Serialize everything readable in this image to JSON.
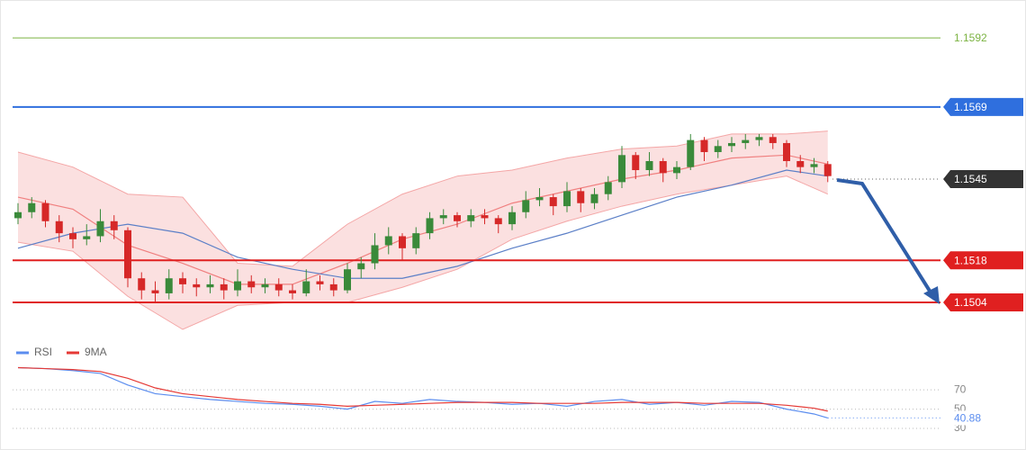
{
  "chart_data": [
    {
      "type": "candlestick",
      "ylim": [
        1.14938,
        1.16046
      ],
      "bull_color": "#3a8a3a",
      "bear_color": "#d62828",
      "candles": [
        [
          1.1532,
          1.1537,
          1.153,
          1.1534
        ],
        [
          1.1534,
          1.1539,
          1.1532,
          1.1537
        ],
        [
          1.1537,
          1.1538,
          1.1529,
          1.1531
        ],
        [
          1.1531,
          1.1533,
          1.1524,
          1.1527
        ],
        [
          1.1527,
          1.1529,
          1.1522,
          1.1525
        ],
        [
          1.1525,
          1.153,
          1.1523,
          1.1526
        ],
        [
          1.1526,
          1.1535,
          1.1524,
          1.1531
        ],
        [
          1.1531,
          1.1533,
          1.1525,
          1.1528
        ],
        [
          1.1528,
          1.1529,
          1.1509,
          1.1512
        ],
        [
          1.1512,
          1.1514,
          1.1505,
          1.1508
        ],
        [
          1.1508,
          1.1511,
          1.1504,
          1.1507
        ],
        [
          1.1507,
          1.1515,
          1.1505,
          1.1512
        ],
        [
          1.1512,
          1.1514,
          1.1507,
          1.151
        ],
        [
          1.151,
          1.1512,
          1.1506,
          1.1509
        ],
        [
          1.1509,
          1.1513,
          1.1507,
          1.151
        ],
        [
          1.151,
          1.1512,
          1.1505,
          1.1508
        ],
        [
          1.1508,
          1.1515,
          1.1506,
          1.1511
        ],
        [
          1.1511,
          1.1513,
          1.1507,
          1.1509
        ],
        [
          1.1509,
          1.1512,
          1.1507,
          1.151
        ],
        [
          1.151,
          1.1512,
          1.1506,
          1.1508
        ],
        [
          1.1508,
          1.151,
          1.1505,
          1.1507
        ],
        [
          1.1507,
          1.1515,
          1.1506,
          1.1511
        ],
        [
          1.1511,
          1.1513,
          1.1508,
          1.151
        ],
        [
          1.151,
          1.1512,
          1.1506,
          1.1508
        ],
        [
          1.1508,
          1.1517,
          1.1507,
          1.1515
        ],
        [
          1.1515,
          1.1519,
          1.1512,
          1.1517
        ],
        [
          1.1517,
          1.1527,
          1.1515,
          1.1523
        ],
        [
          1.1523,
          1.1529,
          1.152,
          1.1526
        ],
        [
          1.1526,
          1.1527,
          1.1518,
          1.1522
        ],
        [
          1.1522,
          1.1529,
          1.152,
          1.1527
        ],
        [
          1.1527,
          1.1534,
          1.1525,
          1.1532
        ],
        [
          1.1532,
          1.1535,
          1.153,
          1.1533
        ],
        [
          1.1533,
          1.1534,
          1.1529,
          1.1531
        ],
        [
          1.1531,
          1.1535,
          1.1529,
          1.1533
        ],
        [
          1.1533,
          1.1535,
          1.153,
          1.1532
        ],
        [
          1.1532,
          1.1533,
          1.1527,
          1.153
        ],
        [
          1.153,
          1.1536,
          1.1528,
          1.1534
        ],
        [
          1.1534,
          1.1541,
          1.1532,
          1.1538
        ],
        [
          1.1538,
          1.1542,
          1.1536,
          1.1539
        ],
        [
          1.1539,
          1.154,
          1.1533,
          1.1536
        ],
        [
          1.1536,
          1.1544,
          1.1534,
          1.1541
        ],
        [
          1.1541,
          1.1542,
          1.1534,
          1.1537
        ],
        [
          1.1537,
          1.1542,
          1.1535,
          1.154
        ],
        [
          1.154,
          1.1546,
          1.1538,
          1.1544
        ],
        [
          1.1544,
          1.1556,
          1.1542,
          1.1553
        ],
        [
          1.1553,
          1.1554,
          1.1545,
          1.1548
        ],
        [
          1.1548,
          1.1554,
          1.1546,
          1.1551
        ],
        [
          1.1551,
          1.1552,
          1.1544,
          1.1547
        ],
        [
          1.1547,
          1.1551,
          1.1545,
          1.1549
        ],
        [
          1.1549,
          1.156,
          1.1548,
          1.1558
        ],
        [
          1.1558,
          1.1559,
          1.1551,
          1.1554
        ],
        [
          1.1554,
          1.1558,
          1.1552,
          1.1556
        ],
        [
          1.1556,
          1.1559,
          1.1554,
          1.1557
        ],
        [
          1.1557,
          1.156,
          1.1555,
          1.1558
        ],
        [
          1.1558,
          1.156,
          1.1556,
          1.1559
        ],
        [
          1.1559,
          1.156,
          1.1555,
          1.1557
        ],
        [
          1.1557,
          1.1558,
          1.1549,
          1.1551
        ],
        [
          1.1551,
          1.1553,
          1.1547,
          1.1549
        ],
        [
          1.1549,
          1.1552,
          1.1547,
          1.155
        ],
        [
          1.155,
          1.1551,
          1.1544,
          1.1546
        ]
      ],
      "overlay_x": [
        0,
        4,
        8,
        12,
        16,
        20,
        24,
        28,
        32,
        36,
        40,
        44,
        48,
        52,
        56,
        59
      ],
      "band": {
        "color": "#f4a6a6",
        "upper": [
          1.1554,
          1.1549,
          1.154,
          1.1539,
          1.1517,
          1.1516,
          1.153,
          1.154,
          1.1546,
          1.1548,
          1.1552,
          1.1555,
          1.1556,
          1.156,
          1.156,
          1.1561
        ],
        "lower": [
          1.1524,
          1.1521,
          1.1506,
          1.1495,
          1.1503,
          1.1504,
          1.1504,
          1.1509,
          1.1515,
          1.1525,
          1.1531,
          1.1536,
          1.154,
          1.1543,
          1.1546,
          1.154
        ]
      },
      "lines": [
        {
          "color": "#f08080",
          "values": [
            1.1539,
            1.1535,
            1.1523,
            1.1517,
            1.151,
            1.151,
            1.1517,
            1.1525,
            1.153,
            1.1537,
            1.1541,
            1.1545,
            1.1548,
            1.1552,
            1.1553,
            1.155
          ]
        },
        {
          "color": "#5b7fc7",
          "values": [
            1.1522,
            1.1527,
            1.153,
            1.1527,
            1.1519,
            1.1515,
            1.1512,
            1.1512,
            1.1516,
            1.1522,
            1.1527,
            1.1533,
            1.1539,
            1.1543,
            1.1548,
            1.1546
          ]
        }
      ],
      "levels": [
        {
          "value": 1.1592,
          "color": "#7cb342",
          "style": "solid",
          "box": false
        },
        {
          "value": 1.1569,
          "color": "#2f6fde",
          "style": "solid",
          "box": true
        },
        {
          "value": 1.1545,
          "color": "#333333",
          "style": "dotted",
          "box": true
        },
        {
          "value": 1.1518,
          "color": "#e02020",
          "style": "solid",
          "box": true
        },
        {
          "value": 1.1504,
          "color": "#e02020",
          "style": "solid",
          "box": true
        }
      ]
    },
    {
      "type": "line",
      "ylim": [
        17,
        100
      ],
      "yticks": [
        70,
        50,
        30
      ],
      "grid": true,
      "x": [
        0,
        2,
        4,
        6,
        8,
        10,
        12,
        14,
        16,
        18,
        20,
        22,
        24,
        26,
        28,
        30,
        32,
        34,
        36,
        38,
        40,
        42,
        44,
        46,
        48,
        50,
        52,
        54,
        56,
        58,
        59
      ],
      "series": [
        {
          "name": "RSI",
          "color": "#5b8def",
          "values": [
            93,
            92,
            90,
            87,
            75,
            66,
            63,
            60,
            58,
            56,
            55,
            53,
            50,
            58,
            56,
            60,
            58,
            57,
            55,
            56,
            53,
            58,
            60,
            55,
            57,
            54,
            58,
            57,
            50,
            45,
            40.88
          ]
        },
        {
          "name": "9MA",
          "color": "#e53935",
          "values": [
            93,
            92,
            91,
            89,
            82,
            72,
            66,
            63,
            60,
            58,
            56,
            55,
            53,
            54,
            55,
            56,
            57,
            57,
            57,
            56,
            56,
            56,
            57,
            57,
            57,
            56,
            56,
            56,
            54,
            51,
            48
          ]
        }
      ]
    }
  ]
}
